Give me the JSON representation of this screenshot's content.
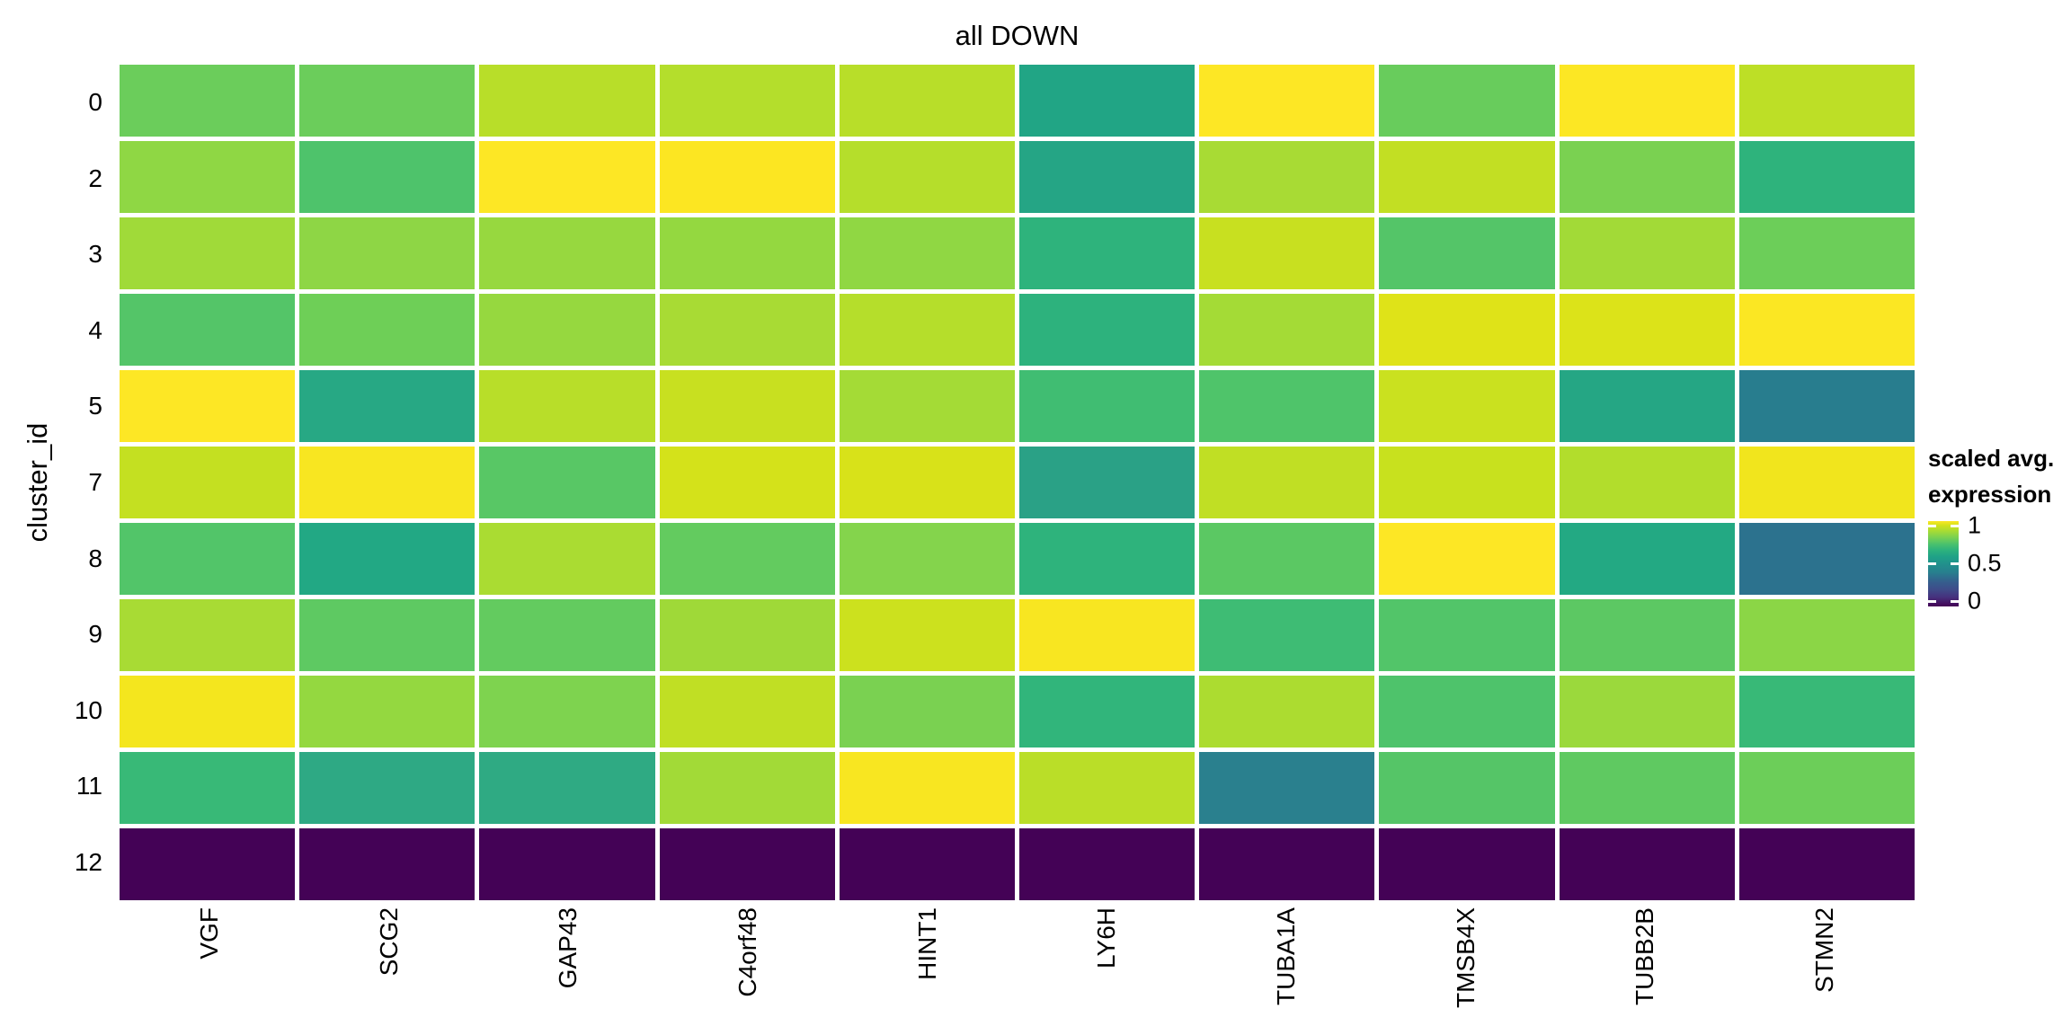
{
  "title": "all DOWN",
  "y_axis": {
    "label": "cluster_id",
    "tick_labels": [
      "0",
      "2",
      "3",
      "4",
      "5",
      "7",
      "8",
      "9",
      "10",
      "11",
      "12"
    ]
  },
  "x_axis": {
    "tick_labels": [
      "VGF",
      "SCG2",
      "GAP43",
      "C4orf48",
      "HINT1",
      "LY6H",
      "TUBA1A",
      "TMSB4X",
      "TUBB2B",
      "STMN2"
    ]
  },
  "legend": {
    "title_lines": [
      "scaled avg.",
      "expression"
    ],
    "ticks": [
      {
        "label": "1",
        "value": 1
      },
      {
        "label": "0.5",
        "value": 0.5
      },
      {
        "label": "0",
        "value": 0
      }
    ]
  },
  "colors": {
    "background": "#FFFFFF",
    "text": "#000000",
    "grid_line": "#FFFFFF",
    "viridis_min": "#440154",
    "viridis_mid": "#21918C",
    "viridis_max": "#FDE725"
  },
  "chart_data": {
    "type": "heatmap",
    "title": "all DOWN",
    "xlabel": "",
    "ylabel": "cluster_id",
    "colormap": "viridis",
    "value_range": [
      0,
      1
    ],
    "legend_title": "scaled avg. expression",
    "legend_position": "right",
    "rows": [
      "0",
      "2",
      "3",
      "4",
      "5",
      "7",
      "8",
      "9",
      "10",
      "11",
      "12"
    ],
    "columns": [
      "VGF",
      "SCG2",
      "GAP43",
      "C4orf48",
      "HINT1",
      "LY6H",
      "TUBA1A",
      "TMSB4X",
      "TUBB2B",
      "STMN2"
    ],
    "values": [
      [
        0.75,
        0.75,
        0.88,
        0.87,
        0.88,
        0.55,
        1.0,
        0.74,
        1.0,
        0.89
      ],
      [
        0.8,
        0.69,
        1.0,
        0.99,
        0.87,
        0.56,
        0.85,
        0.9,
        0.78,
        0.62
      ],
      [
        0.84,
        0.8,
        0.81,
        0.81,
        0.8,
        0.63,
        0.91,
        0.71,
        0.84,
        0.76
      ],
      [
        0.71,
        0.76,
        0.81,
        0.85,
        0.87,
        0.62,
        0.84,
        0.95,
        0.94,
        0.99
      ],
      [
        1.0,
        0.57,
        0.88,
        0.91,
        0.85,
        0.67,
        0.7,
        0.91,
        0.56,
        0.37
      ],
      [
        0.9,
        0.98,
        0.72,
        0.93,
        0.94,
        0.55,
        0.9,
        0.91,
        0.87,
        0.96
      ],
      [
        0.71,
        0.57,
        0.86,
        0.74,
        0.79,
        0.62,
        0.72,
        1.0,
        0.57,
        0.34
      ],
      [
        0.85,
        0.73,
        0.74,
        0.83,
        0.92,
        0.98,
        0.65,
        0.71,
        0.72,
        0.8
      ],
      [
        0.97,
        0.81,
        0.78,
        0.9,
        0.78,
        0.63,
        0.86,
        0.69,
        0.83,
        0.64
      ],
      [
        0.64,
        0.57,
        0.57,
        0.84,
        0.98,
        0.88,
        0.36,
        0.72,
        0.73,
        0.76
      ],
      [
        0.0,
        0.0,
        0.0,
        0.0,
        0.0,
        0.0,
        0.0,
        0.0,
        0.0,
        0.0
      ]
    ],
    "cell_colors": [
      [
        "#6BCD5B",
        "#6BCD5B",
        "#B8DE29",
        "#B4DE2C",
        "#B8DE29",
        "#21A585",
        "#FDE725",
        "#68CC5C",
        "#FCE724",
        "#BDDF26"
      ],
      [
        "#8FD744",
        "#4EC36B",
        "#FDE725",
        "#FCE622",
        "#B5DE2B",
        "#25A585",
        "#A8DB34",
        "#C2DF23",
        "#7AD151",
        "#2EB37C"
      ],
      [
        "#A0DA39",
        "#8ED645",
        "#97D83F",
        "#94D840",
        "#90D743",
        "#2EB37C",
        "#C8E020",
        "#54C568",
        "#A2DA37",
        "#6CCE59"
      ],
      [
        "#54C568",
        "#6ECF57",
        "#96D83F",
        "#A8DB34",
        "#B5DE2B",
        "#2DB27D",
        "#A4DB36",
        "#DFE318",
        "#DCE319",
        "#FBE723"
      ],
      [
        "#FDE725",
        "#27A884",
        "#B8DE29",
        "#C8E020",
        "#A4DB36",
        "#40BD72",
        "#4FC46A",
        "#CAE11F",
        "#25A684",
        "#287D8E"
      ],
      [
        "#C4E021",
        "#F8E621",
        "#58C765",
        "#D4E21A",
        "#D8E219",
        "#2AA186",
        "#C0DF24",
        "#C8E11E",
        "#B2DD2C",
        "#F1E51D"
      ],
      [
        "#52C569",
        "#22A884",
        "#AADC32",
        "#63CB5F",
        "#84D44C",
        "#2EB37C",
        "#5BC863",
        "#FDE725",
        "#23A983",
        "#2C728E"
      ],
      [
        "#A8DB34",
        "#5EC962",
        "#63CB5F",
        "#9FD938",
        "#CCE11E",
        "#F8E621",
        "#3EBC74",
        "#52C569",
        "#5CC863",
        "#8BD646"
      ],
      [
        "#F4E61E",
        "#94D840",
        "#7ED34F",
        "#C0DF24",
        "#7AD151",
        "#31B57B",
        "#ACDC30",
        "#4EC36B",
        "#9BD93C",
        "#38B977"
      ],
      [
        "#38B977",
        "#2EA984",
        "#2FAA83",
        "#A2DA37",
        "#F8E621",
        "#BADE28",
        "#2A808E",
        "#55C567",
        "#5FC961",
        "#6CCE59"
      ],
      [
        "#440256",
        "#440256",
        "#440256",
        "#440256",
        "#440256",
        "#440256",
        "#440256",
        "#440256",
        "#440256",
        "#440256"
      ]
    ]
  }
}
